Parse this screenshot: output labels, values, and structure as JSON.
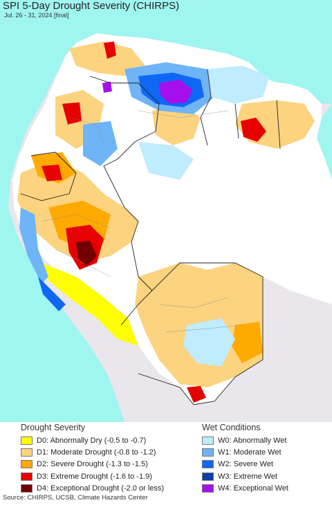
{
  "title": "SPI 5-Day Drought Severity (CHIRPS)",
  "subtitle": "Jul. 26 - 31, 2024 [final]",
  "colors": {
    "ocean": "#9ff5f0",
    "outside": "#e9e6ec",
    "no_drought": "#ffffff",
    "D0": "#fefe00",
    "D1": "#fcd37f",
    "D2": "#ffaa00",
    "D3": "#e60000",
    "D4": "#730000",
    "W0": "#bfecfe",
    "W1": "#6fb4f6",
    "W2": "#0f67f4",
    "W3": "#0b3ea9",
    "W4": "#a50fee"
  },
  "legend": {
    "drought_title": "Drought Severity",
    "wet_title": "Wet Conditions",
    "drought_items": [
      {
        "key": "D0",
        "label": "D0: Abnormally Dry (-0.5 to -0.7)"
      },
      {
        "key": "D1",
        "label": "D1: Moderate Drought (-0.8 to -1.2)"
      },
      {
        "key": "D2",
        "label": "D2: Severe Drought (-1.3 to -1.5)"
      },
      {
        "key": "D3",
        "label": "D3: Extreme Drought (-1.6 to -1.9)"
      },
      {
        "key": "D4",
        "label": "D4: Exceptional Drought (-2.0 or less)"
      }
    ],
    "wet_items": [
      {
        "key": "W0",
        "label": "W0: Abnormally Wet"
      },
      {
        "key": "W1",
        "label": "W1: Moderate Wet"
      },
      {
        "key": "W2",
        "label": "W2: Severe Wet"
      },
      {
        "key": "W3",
        "label": "W3: Extreme Wet"
      },
      {
        "key": "W4",
        "label": "W4: Exceptional Wet"
      }
    ]
  },
  "source": "Source: CHIRPS, UCSB, Climate Hazards Center"
}
